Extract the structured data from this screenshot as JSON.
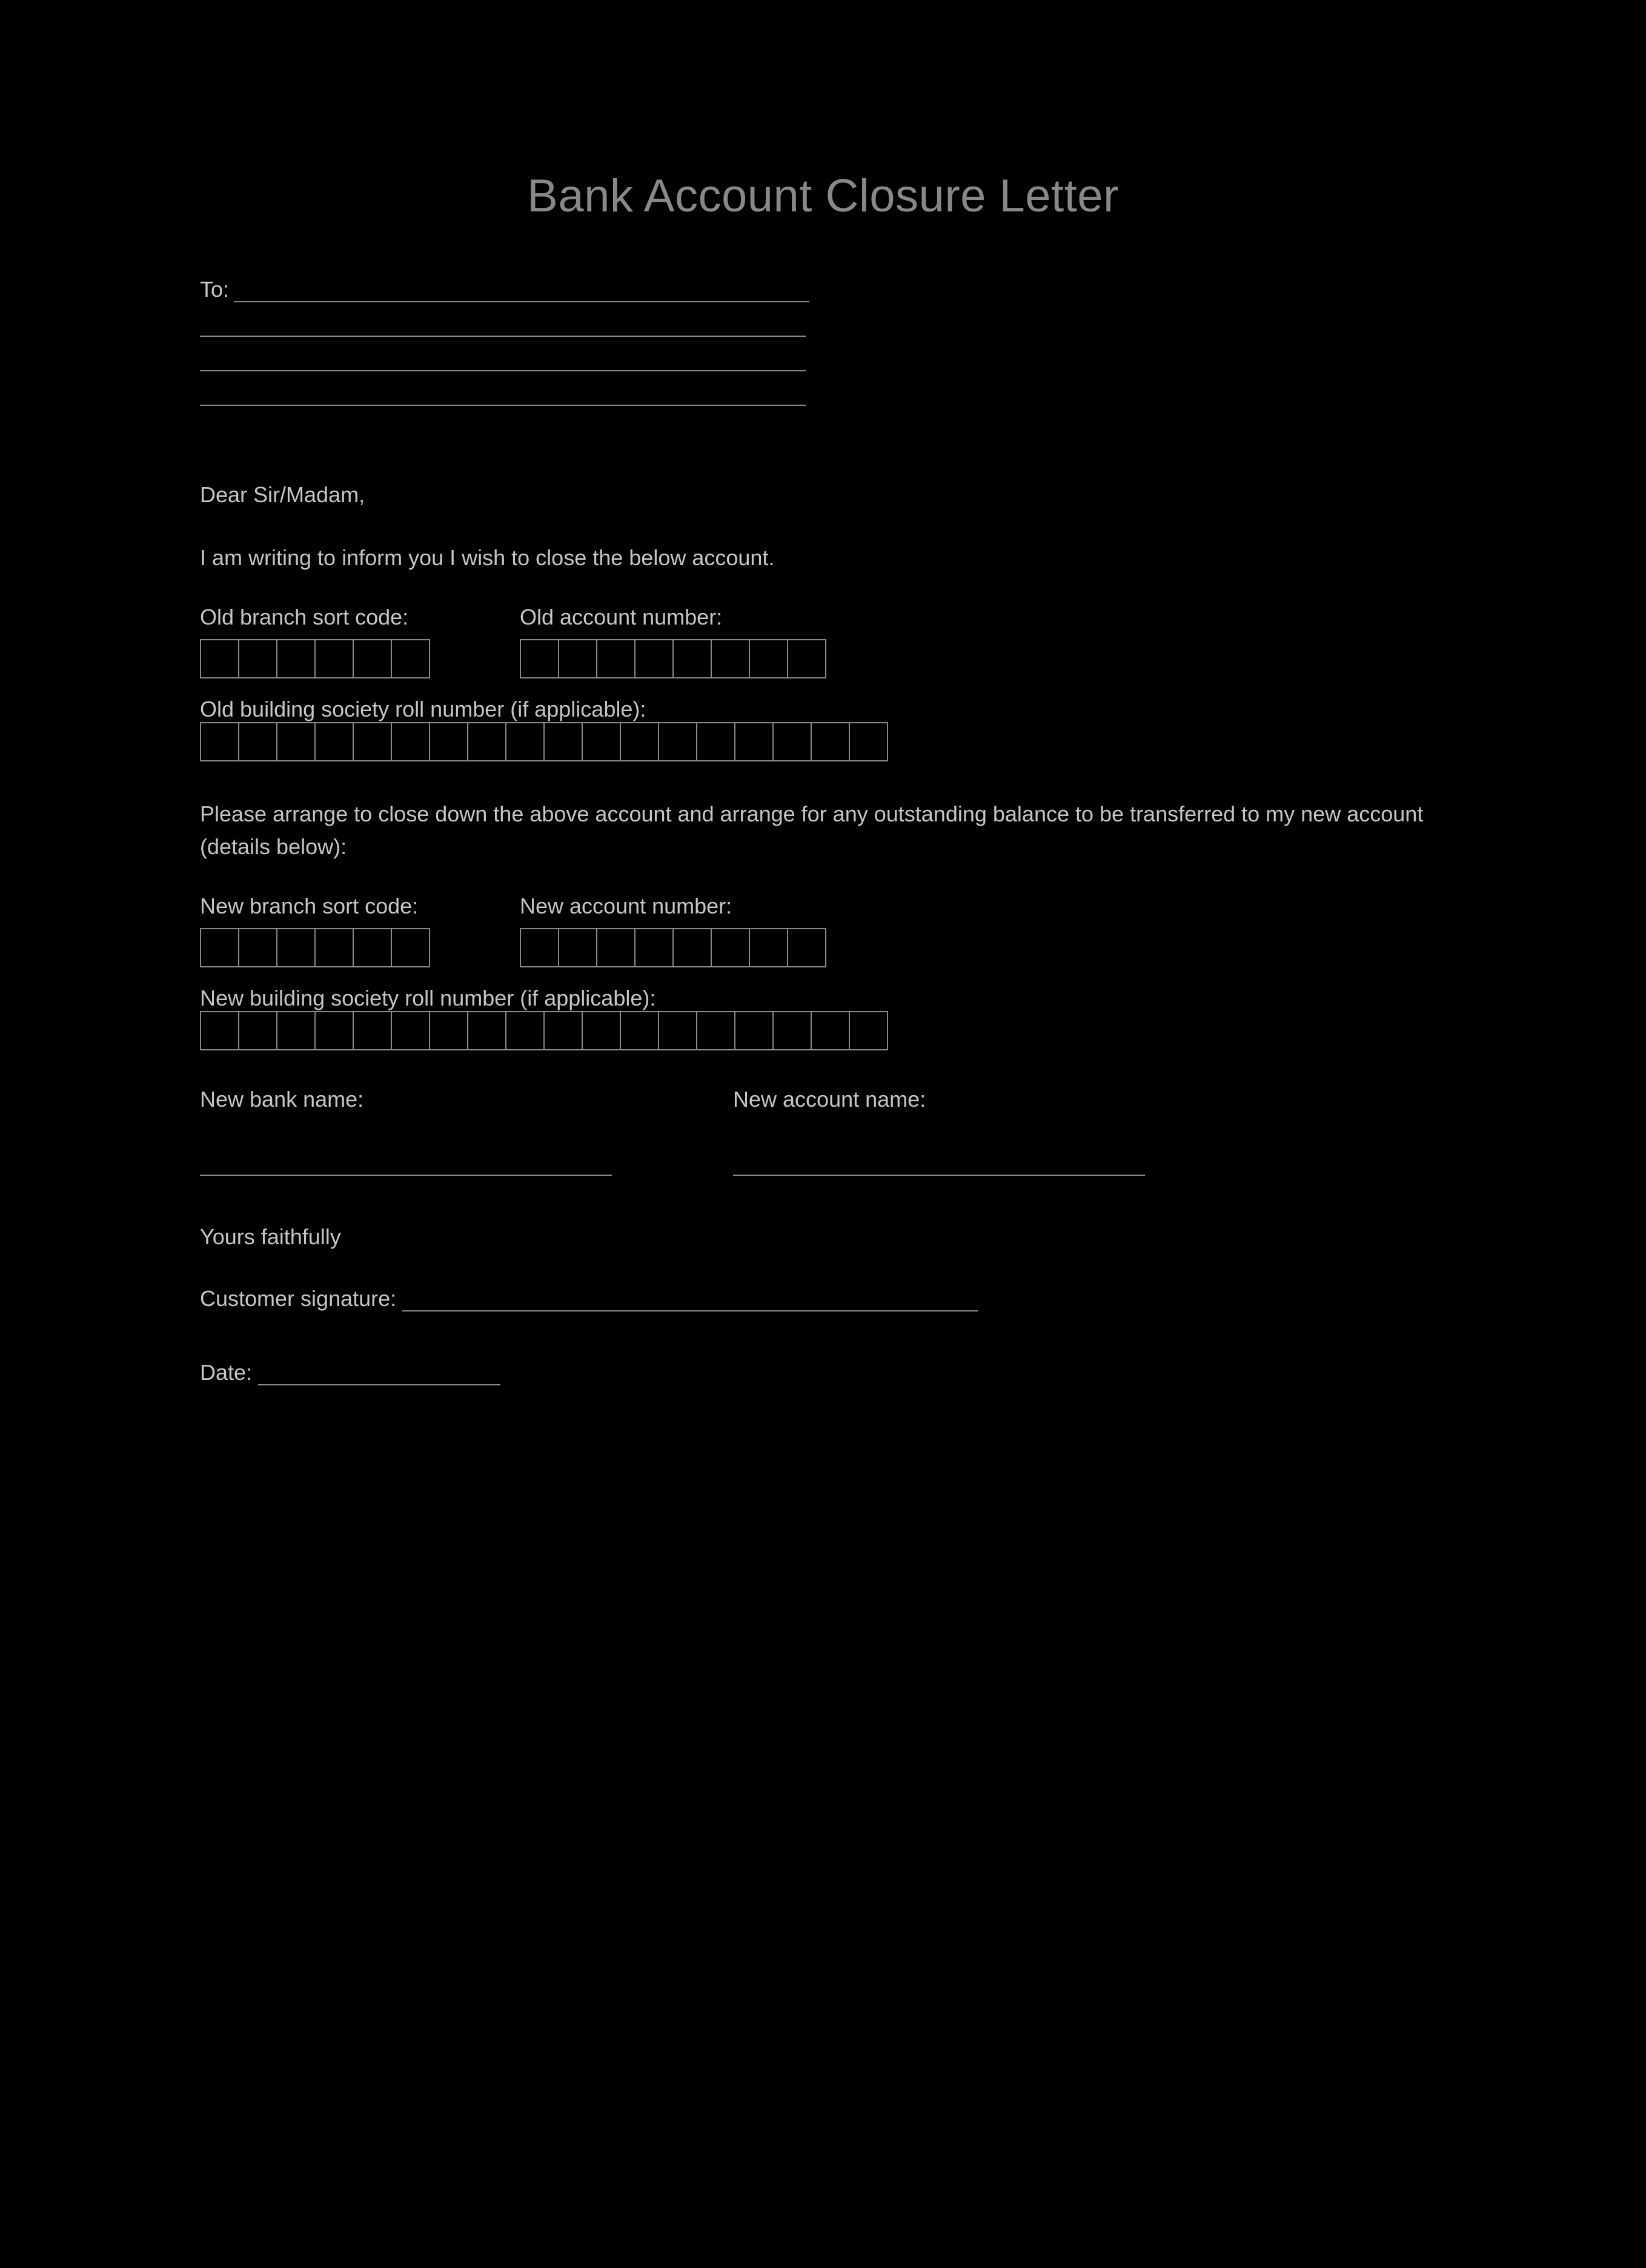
{
  "document": {
    "title": "Bank Account Closure Letter",
    "to_label": "To:",
    "salutation": "Dear Sir/Madam,",
    "intro": "I am writing to inform you I wish to close the below account.",
    "old_sort_code_label": "Old branch sort code:",
    "old_account_label": "Old account number:",
    "old_roll_label": "Old building society roll number (if applicable):",
    "transfer_text": "Please arrange to close down the above account and arrange for any outstanding balance to be transferred to my new account (details below):",
    "new_sort_code_label": "New branch sort code:",
    "new_account_label": "New account number:",
    "new_roll_label": "New building society roll number (if applicable):",
    "new_bank_label": "New bank name:",
    "new_account_name_label": "New account name:",
    "closing": "Yours faithfully",
    "signature_label": "Customer signature:",
    "date_label": "Date:",
    "box_counts": {
      "sort_code": 6,
      "account_number": 8,
      "roll_number": 18
    },
    "colors": {
      "background": "#000000",
      "text": "#c5c5c5",
      "title": "#888888",
      "border": "#888888"
    }
  }
}
